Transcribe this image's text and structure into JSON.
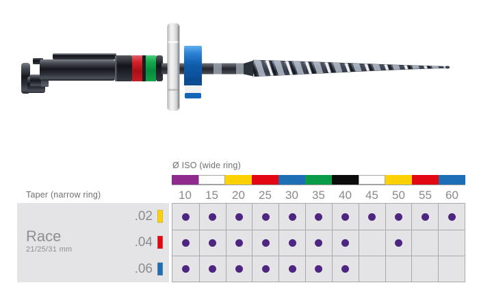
{
  "page": {
    "background": "#ffffff"
  },
  "iso_header": {
    "label": "Ø ISO (wide ring)"
  },
  "taper_header": {
    "label": "Taper (narrow ring)"
  },
  "size_labels": [
    "10",
    "15",
    "20",
    "25",
    "30",
    "35",
    "40",
    "45",
    "50",
    "55",
    "60"
  ],
  "size_ring_colors": [
    "#8f2b8f",
    "#ffffff",
    "#fcd205",
    "#e30613",
    "#1e6eb5",
    "#0a9c49",
    "#0c0c0c",
    "#ffffff",
    "#fcd205",
    "#e30613",
    "#1e6eb5"
  ],
  "product": {
    "name": "Race",
    "lengths": "21/25/31 mm"
  },
  "tapers": [
    {
      "label": ".02",
      "swatch_color": "#fcd205",
      "available": [
        true,
        true,
        true,
        true,
        true,
        true,
        true,
        true,
        true,
        true,
        true
      ]
    },
    {
      "label": ".04",
      "swatch_color": "#e30613",
      "available": [
        true,
        true,
        true,
        true,
        true,
        true,
        true,
        false,
        true,
        false,
        false
      ]
    },
    {
      "label": ".06",
      "swatch_color": "#1e6eb5",
      "available": [
        true,
        true,
        true,
        true,
        true,
        true,
        true,
        false,
        false,
        false,
        false
      ]
    }
  ],
  "dot_color": "#4e2581",
  "instrument": {
    "name": "rotary-endodontic-file",
    "narrow_ring_red": "#c81d24",
    "narrow_ring_green": "#12a34a",
    "stopper_blue": "#1266b5",
    "disc_gray": "#d6d6d8"
  }
}
